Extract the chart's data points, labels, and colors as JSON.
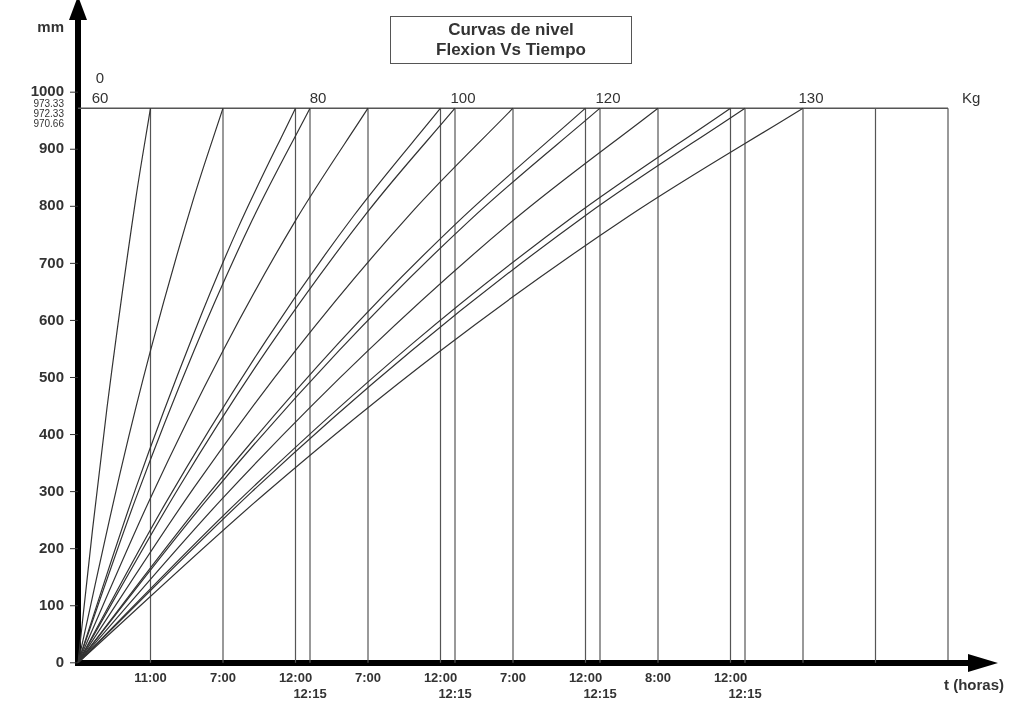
{
  "chart_data": {
    "type": "line",
    "title": "Curvas de nivel",
    "subtitle": "Flexion Vs Tiempo",
    "xlabel": "t (horas)",
    "ylabel": "mm",
    "categories": [
      null,
      null,
      null,
      null,
      null,
      "11:00",
      null,
      null,
      null,
      null,
      "7:00",
      null,
      null,
      null,
      null,
      "12:00",
      "12:15",
      null,
      null,
      null,
      "7:00",
      null,
      null,
      null,
      null,
      "12:00",
      "12:15",
      null,
      null,
      null,
      "7:00",
      null,
      null,
      null,
      null,
      "12:00",
      "12:15",
      null,
      null,
      null,
      "8:00",
      null,
      null,
      null,
      null,
      "12:00",
      "12:15",
      null,
      null,
      null,
      null,
      null,
      null,
      null,
      null,
      null,
      null,
      null,
      null,
      null,
      null
    ],
    "ylim": [
      0,
      1130
    ],
    "yticks": [
      0,
      100,
      200,
      300,
      400,
      500,
      600,
      700,
      800,
      900,
      1000
    ],
    "grid": "x",
    "legend": false,
    "marker": "none",
    "line_style": "solid",
    "ref_lines": [
      {
        "axis": "y",
        "value": 972,
        "label": null
      }
    ],
    "annotations": [
      "0",
      "973.33",
      "972.33",
      "970.66",
      "Kg"
    ],
    "series": [
      {
        "name": "60",
        "color": "#333333",
        "values": [
          0,
          233,
          447,
          null,
          816,
          972,
          null,
          null,
          null,
          null,
          null,
          null,
          null,
          null,
          null,
          null,
          null,
          null,
          null,
          null,
          null,
          null,
          null,
          null,
          null,
          null,
          null,
          null,
          null,
          null,
          null,
          null,
          null,
          null,
          null,
          null,
          null,
          null,
          null,
          null,
          null,
          null,
          null,
          null,
          null,
          null,
          null,
          null,
          null,
          null,
          null,
          null,
          null,
          null,
          null,
          null,
          null,
          null,
          null,
          null,
          null
        ]
      },
      {
        "color": "#333333",
        "values": [
          0,
          null,
          null,
          343,
          null,
          547,
          null,
          null,
          816,
          null,
          972,
          null,
          null,
          null,
          null,
          null,
          null,
          null,
          null,
          null,
          null,
          null,
          null,
          null,
          null,
          null,
          null,
          null,
          null,
          null,
          null,
          null,
          null,
          null,
          null,
          null,
          null,
          null,
          null,
          null,
          null,
          null,
          null,
          null,
          null,
          null,
          null,
          null,
          null,
          null,
          null,
          null,
          null,
          null,
          null,
          null,
          null,
          null,
          null,
          null,
          null
        ]
      },
      {
        "color": "#333333",
        "values": [
          0,
          null,
          null,
          null,
          307,
          null,
          null,
          null,
          578,
          null,
          null,
          760,
          null,
          null,
          null,
          972,
          null,
          null,
          null,
          null,
          null,
          null,
          null,
          null,
          null,
          null,
          null,
          null,
          null,
          null,
          null,
          null,
          null,
          null,
          null,
          null,
          null,
          null,
          null,
          null,
          null,
          null,
          null,
          null,
          null,
          null,
          null,
          null,
          null,
          null,
          null,
          null,
          null,
          null,
          null,
          null,
          null,
          null,
          null,
          null,
          null
        ]
      },
      {
        "name": "80",
        "color": "#333333",
        "values": [
          0,
          null,
          null,
          null,
          289,
          null,
          null,
          null,
          547,
          null,
          null,
          null,
          775,
          null,
          null,
          null,
          972,
          null,
          null,
          null,
          null,
          null,
          null,
          null,
          null,
          null,
          null,
          null,
          null,
          null,
          null,
          null,
          null,
          null,
          null,
          null,
          null,
          null,
          null,
          null,
          null,
          null,
          null,
          null,
          null,
          null,
          null,
          null,
          null,
          null,
          null,
          null,
          null,
          null,
          null,
          null,
          null,
          null,
          null,
          null,
          null
        ]
      },
      {
        "color": "#333333",
        "values": [
          0,
          null,
          null,
          null,
          null,
          289,
          null,
          null,
          null,
          null,
          547,
          null,
          null,
          null,
          null,
          775,
          null,
          null,
          null,
          null,
          972,
          null,
          null,
          null,
          null,
          null,
          null,
          null,
          null,
          null,
          null,
          null,
          null,
          null,
          null,
          null,
          null,
          null,
          null,
          null,
          null,
          null,
          null,
          null,
          null,
          null,
          null,
          null,
          null,
          null,
          null,
          null,
          null,
          null,
          null,
          null,
          null,
          null,
          null,
          null,
          null
        ]
      },
      {
        "color": "#333333",
        "values": [
          0,
          null,
          null,
          null,
          null,
          null,
          278,
          null,
          null,
          null,
          null,
          null,
          null,
          566,
          null,
          null,
          null,
          null,
          null,
          783,
          null,
          null,
          null,
          null,
          null,
          972,
          null,
          null,
          null,
          null,
          null,
          null,
          null,
          null,
          null,
          null,
          null,
          null,
          null,
          null,
          null,
          null,
          null,
          null,
          null,
          null,
          null,
          null,
          null,
          null,
          null,
          null,
          null,
          null,
          null,
          null,
          null,
          null,
          null,
          null,
          null
        ]
      },
      {
        "name": "100",
        "color": "#333333",
        "values": [
          0,
          null,
          null,
          null,
          null,
          null,
          null,
          309,
          null,
          null,
          null,
          null,
          null,
          547,
          null,
          null,
          null,
          null,
          null,
          null,
          791,
          null,
          null,
          null,
          null,
          null,
          972,
          null,
          null,
          null,
          null,
          null,
          null,
          null,
          null,
          null,
          null,
          null,
          null,
          null,
          null,
          null,
          null,
          null,
          null,
          null,
          null,
          null,
          null,
          null,
          null,
          null,
          null,
          null,
          null,
          null,
          null,
          null,
          null,
          null,
          null
        ]
      },
      {
        "color": "#333333",
        "values": [
          0,
          null,
          null,
          null,
          null,
          null,
          null,
          null,
          307,
          null,
          null,
          null,
          null,
          null,
          null,
          547,
          null,
          null,
          null,
          null,
          null,
          null,
          null,
          789,
          null,
          null,
          null,
          null,
          null,
          null,
          972,
          null,
          null,
          null,
          null,
          null,
          null,
          null,
          null,
          null,
          null,
          null,
          null,
          null,
          null,
          null,
          null,
          null,
          null,
          null,
          null,
          null,
          null,
          null,
          null,
          null,
          null,
          null,
          null,
          null,
          null
        ]
      },
      {
        "color": "#333333",
        "values": [
          0,
          null,
          null,
          null,
          null,
          null,
          null,
          null,
          null,
          296,
          null,
          null,
          null,
          null,
          null,
          null,
          null,
          null,
          561,
          null,
          null,
          null,
          null,
          null,
          null,
          null,
          768,
          null,
          null,
          null,
          null,
          null,
          null,
          null,
          null,
          972,
          null,
          null,
          null,
          null,
          null,
          null,
          null,
          null,
          null,
          null,
          null,
          null,
          null,
          null,
          null,
          null,
          null,
          null,
          null,
          null,
          null,
          null,
          null,
          null,
          null
        ]
      },
      {
        "name": "120",
        "color": "#333333",
        "values": [
          0,
          null,
          null,
          null,
          null,
          null,
          null,
          null,
          null,
          289,
          null,
          null,
          null,
          null,
          null,
          null,
          null,
          null,
          547,
          null,
          null,
          null,
          null,
          null,
          null,
          null,
          null,
          775,
          null,
          null,
          null,
          null,
          null,
          null,
          null,
          null,
          972,
          null,
          null,
          null,
          null,
          null,
          null,
          null,
          null,
          null,
          null,
          null,
          null,
          null,
          null,
          null,
          null,
          null,
          null,
          null,
          null,
          null,
          null,
          null,
          null
        ]
      },
      {
        "color": "#333333",
        "values": [
          0,
          null,
          null,
          null,
          null,
          null,
          null,
          null,
          null,
          null,
          289,
          null,
          null,
          null,
          null,
          null,
          null,
          null,
          null,
          null,
          547,
          null,
          null,
          null,
          null,
          null,
          null,
          null,
          null,
          null,
          775,
          null,
          null,
          null,
          null,
          null,
          null,
          null,
          null,
          null,
          972,
          null,
          null,
          null,
          null,
          null,
          null,
          null,
          null,
          null,
          null,
          null,
          null,
          null,
          null,
          null,
          null,
          null,
          null,
          null,
          null
        ]
      },
      {
        "color": "#333333",
        "values": [
          0,
          null,
          null,
          null,
          null,
          null,
          null,
          null,
          null,
          null,
          null,
          282,
          null,
          null,
          null,
          null,
          null,
          null,
          null,
          null,
          null,
          null,
          null,
          558,
          null,
          null,
          null,
          null,
          null,
          null,
          null,
          null,
          null,
          null,
          779,
          null,
          null,
          null,
          null,
          null,
          null,
          null,
          null,
          null,
          null,
          972,
          null,
          null,
          null,
          null,
          null,
          null,
          null,
          null,
          null,
          null,
          null,
          null,
          null,
          null,
          null
        ]
      },
      {
        "color": "#333333",
        "values": [
          0,
          null,
          null,
          null,
          null,
          null,
          null,
          null,
          null,
          null,
          null,
          null,
          300,
          null,
          null,
          null,
          null,
          null,
          null,
          null,
          null,
          null,
          null,
          547,
          null,
          null,
          null,
          null,
          null,
          null,
          null,
          null,
          null,
          null,
          null,
          784,
          null,
          null,
          null,
          null,
          null,
          null,
          null,
          null,
          null,
          null,
          972,
          null,
          null,
          null,
          null,
          null,
          null,
          null,
          null,
          null,
          null,
          null,
          null,
          null,
          null
        ]
      },
      {
        "name": "130",
        "color": "#333333",
        "values": [
          0,
          null,
          null,
          null,
          null,
          null,
          null,
          null,
          null,
          null,
          null,
          null,
          null,
          299,
          null,
          null,
          null,
          null,
          null,
          null,
          null,
          null,
          null,
          null,
          null,
          547,
          null,
          null,
          null,
          null,
          null,
          null,
          null,
          null,
          null,
          null,
          null,
          null,
          783,
          null,
          null,
          null,
          null,
          null,
          null,
          null,
          null,
          null,
          null,
          null,
          972,
          null,
          null,
          null,
          null,
          null,
          null,
          null,
          null,
          null,
          null
        ]
      }
    ]
  }
}
